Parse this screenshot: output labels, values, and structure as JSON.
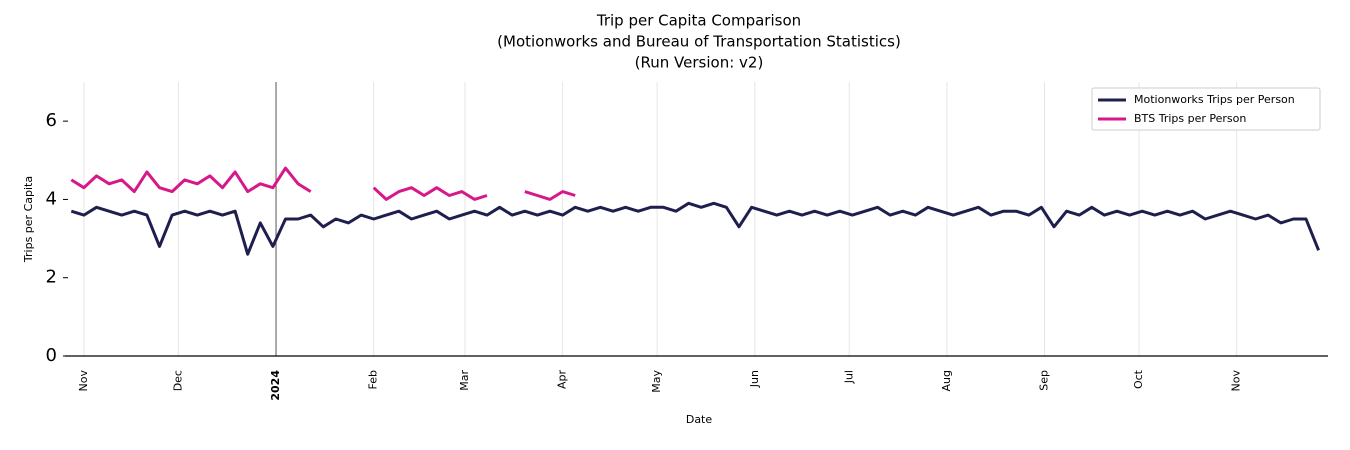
{
  "chart_data": {
    "type": "line",
    "title": [
      "Trip per Capita Comparison",
      "(Motionworks and Bureau of Transportation Statistics)",
      "(Run Version: v2)"
    ],
    "xlabel": "Date",
    "ylabel": "Trips per Capita",
    "x": [
      "2023-10-28",
      "2023-11-01",
      "2023-11-05",
      "2023-11-09",
      "2023-11-13",
      "2023-11-17",
      "2023-11-21",
      "2023-11-25",
      "2023-11-29",
      "2023-12-03",
      "2023-12-07",
      "2023-12-11",
      "2023-12-15",
      "2023-12-19",
      "2023-12-23",
      "2023-12-27",
      "2023-12-31",
      "2024-01-04",
      "2024-01-08",
      "2024-01-12",
      "2024-01-16",
      "2024-01-20",
      "2024-01-24",
      "2024-01-28",
      "2024-02-01",
      "2024-02-05",
      "2024-02-09",
      "2024-02-13",
      "2024-02-17",
      "2024-02-21",
      "2024-02-25",
      "2024-02-29",
      "2024-03-04",
      "2024-03-08",
      "2024-03-12",
      "2024-03-16",
      "2024-03-20",
      "2024-03-24",
      "2024-03-28",
      "2024-04-01",
      "2024-04-05",
      "2024-04-09",
      "2024-04-13",
      "2024-04-17",
      "2024-04-21",
      "2024-04-25",
      "2024-04-29",
      "2024-05-03",
      "2024-05-07",
      "2024-05-11",
      "2024-05-15",
      "2024-05-19",
      "2024-05-23",
      "2024-05-27",
      "2024-05-31",
      "2024-06-04",
      "2024-06-08",
      "2024-06-12",
      "2024-06-16",
      "2024-06-20",
      "2024-06-24",
      "2024-06-28",
      "2024-07-02",
      "2024-07-06",
      "2024-07-10",
      "2024-07-14",
      "2024-07-18",
      "2024-07-22",
      "2024-07-26",
      "2024-07-30",
      "2024-08-03",
      "2024-08-07",
      "2024-08-11",
      "2024-08-15",
      "2024-08-19",
      "2024-08-23",
      "2024-08-27",
      "2024-08-31",
      "2024-09-04",
      "2024-09-08",
      "2024-09-12",
      "2024-09-16",
      "2024-09-20",
      "2024-09-24",
      "2024-09-28",
      "2024-10-02",
      "2024-10-06",
      "2024-10-10",
      "2024-10-14",
      "2024-10-18",
      "2024-10-22",
      "2024-10-26",
      "2024-10-30",
      "2024-11-03",
      "2024-11-07",
      "2024-11-11",
      "2024-11-15",
      "2024-11-19",
      "2024-11-23",
      "2024-11-27"
    ],
    "series": [
      {
        "name": "Motionworks Trips per Person",
        "color": "#1f1f4e",
        "values": [
          3.7,
          3.6,
          3.8,
          3.7,
          3.6,
          3.7,
          3.6,
          2.8,
          3.6,
          3.7,
          3.6,
          3.7,
          3.6,
          3.7,
          2.6,
          3.4,
          2.8,
          3.5,
          3.5,
          3.6,
          3.3,
          3.5,
          3.4,
          3.6,
          3.5,
          3.6,
          3.7,
          3.5,
          3.6,
          3.7,
          3.5,
          3.6,
          3.7,
          3.6,
          3.8,
          3.6,
          3.7,
          3.6,
          3.7,
          3.6,
          3.8,
          3.7,
          3.8,
          3.7,
          3.8,
          3.7,
          3.8,
          3.8,
          3.7,
          3.9,
          3.8,
          3.9,
          3.8,
          3.3,
          3.8,
          3.7,
          3.6,
          3.7,
          3.6,
          3.7,
          3.6,
          3.7,
          3.6,
          3.7,
          3.8,
          3.6,
          3.7,
          3.6,
          3.8,
          3.7,
          3.6,
          3.7,
          3.8,
          3.6,
          3.7,
          3.7,
          3.6,
          3.8,
          3.3,
          3.7,
          3.6,
          3.8,
          3.6,
          3.7,
          3.6,
          3.7,
          3.6,
          3.7,
          3.6,
          3.7,
          3.5,
          3.6,
          3.7,
          3.6,
          3.5,
          3.6,
          3.4,
          3.5,
          3.5,
          2.7
        ]
      },
      {
        "name": "BTS Trips per Person",
        "color": "#d6188a",
        "values": [
          4.5,
          4.3,
          4.6,
          4.4,
          4.5,
          4.2,
          4.7,
          4.3,
          4.2,
          4.5,
          4.4,
          4.6,
          4.3,
          4.7,
          4.2,
          4.4,
          4.3,
          4.8,
          4.4,
          4.2,
          null,
          null,
          null,
          null,
          4.3,
          4.0,
          4.2,
          4.3,
          4.1,
          4.3,
          4.1,
          4.2,
          4.0,
          4.1,
          null,
          null,
          4.2,
          4.1,
          4.0,
          4.2,
          4.1,
          null,
          null,
          null,
          null,
          null,
          null,
          null,
          null,
          null,
          null,
          null,
          null,
          null,
          null,
          null,
          null,
          null,
          null,
          null,
          null,
          null,
          null,
          null,
          null,
          null,
          null,
          null,
          null,
          null,
          null,
          null,
          null,
          null,
          null,
          null,
          null,
          null,
          null,
          null,
          null,
          null,
          null,
          null,
          null,
          null,
          null,
          null,
          null,
          null,
          null,
          null,
          null,
          null,
          null,
          null,
          null,
          null,
          null,
          null
        ]
      }
    ],
    "xlim": [
      "2023-10-26",
      "2024-11-30"
    ],
    "xticks": [
      {
        "value": "2023-11-01",
        "label": "Nov"
      },
      {
        "value": "2023-12-01",
        "label": "Dec"
      },
      {
        "value": "2024-01-01",
        "label": "2024"
      },
      {
        "value": "2024-02-01",
        "label": "Feb"
      },
      {
        "value": "2024-03-01",
        "label": "Mar"
      },
      {
        "value": "2024-04-01",
        "label": "Apr"
      },
      {
        "value": "2024-05-01",
        "label": "May"
      },
      {
        "value": "2024-06-01",
        "label": "Jun"
      },
      {
        "value": "2024-07-01",
        "label": "Jul"
      },
      {
        "value": "2024-08-01",
        "label": "Aug"
      },
      {
        "value": "2024-09-01",
        "label": "Sep"
      },
      {
        "value": "2024-10-01",
        "label": "Oct"
      },
      {
        "value": "2024-11-01",
        "label": "Nov"
      }
    ],
    "vlines": [
      "2024-01-01"
    ],
    "ylim": [
      0,
      7
    ],
    "yticks": [
      0,
      2,
      4,
      6
    ],
    "grid": "x",
    "legend": "upper right"
  }
}
